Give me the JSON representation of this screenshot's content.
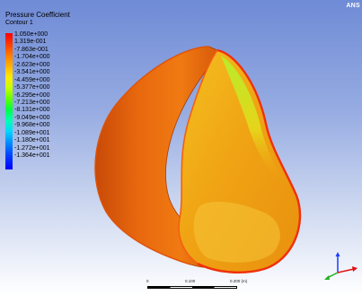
{
  "brand": "ANS",
  "legend": {
    "title": "Pressure Coefficient",
    "subtitle": "Contour 1",
    "labels": [
      "1.050e+000",
      "1.319e-001",
      "-7.863e-001",
      "-1.704e+000",
      "-2.623e+000",
      "-3.541e+000",
      "-4.459e+000",
      "-5.377e+000",
      "-6.295e+000",
      "-7.213e+000",
      "-8.131e+000",
      "-9.049e+000",
      "-9.968e+000",
      "-1.089e+001",
      "-1.180e+001",
      "-1.272e+001",
      "-1.364e+001"
    ]
  },
  "scale": {
    "labels": [
      "0",
      "0.100",
      "0.200 (m)"
    ]
  },
  "colors": {
    "ring_outer": "#e0620e",
    "ring_rim": "#f03a0a",
    "inner_surface": "#f0a010",
    "inner_highlight": "#a8e020"
  },
  "icons": [
    "axis-triad-icon"
  ]
}
